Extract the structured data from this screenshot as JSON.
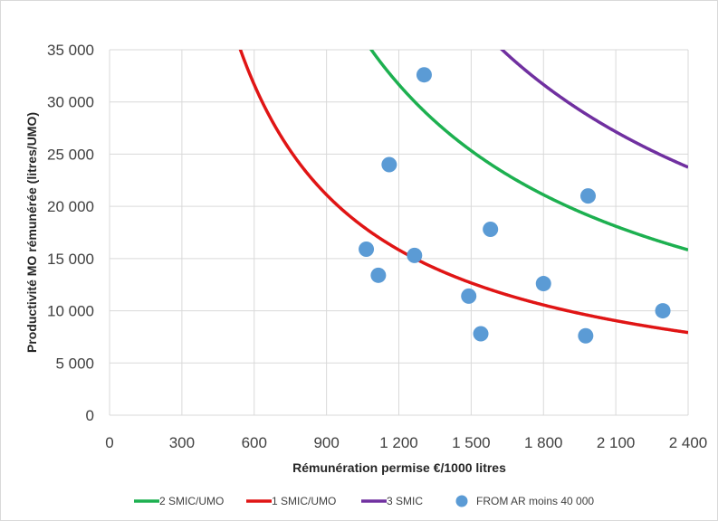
{
  "chart_data": {
    "type": "scatter",
    "xlabel": "Rémunération permise €/1000 litres",
    "ylabel": "Productivité MO rémunérée (litres/UMO)",
    "xlim": [
      0,
      2400
    ],
    "ylim": [
      0,
      35000
    ],
    "x_ticks": [
      0,
      300,
      600,
      900,
      1200,
      1500,
      1800,
      2100,
      2400
    ],
    "x_tick_labels": [
      "0",
      "300",
      "600",
      "900",
      "1 200",
      "1 500",
      "1 800",
      "2 100",
      "2 400"
    ],
    "y_ticks": [
      0,
      5000,
      10000,
      15000,
      20000,
      25000,
      30000,
      35000
    ],
    "y_tick_labels": [
      "0",
      "5 000",
      "10 000",
      "15 000",
      "20 000",
      "25 000",
      "30 000",
      "35 000"
    ],
    "grid": true,
    "legend_position": "bottom",
    "series": [
      {
        "name": "2 SMIC/UMO",
        "kind": "line",
        "color": "#1db050",
        "constant": 38000000
      },
      {
        "name": "1 SMIC/UMO",
        "kind": "line",
        "color": "#e01515",
        "constant": 19000000
      },
      {
        "name": "3 SMIC",
        "kind": "line",
        "color": "#7030a0",
        "constant": 57000000
      },
      {
        "name": "FROM AR moins 40 000",
        "kind": "scatter",
        "color": "#5b9bd5",
        "points": [
          [
            1065,
            15900
          ],
          [
            1115,
            13400
          ],
          [
            1160,
            24000
          ],
          [
            1265,
            15300
          ],
          [
            1305,
            32600
          ],
          [
            1490,
            11400
          ],
          [
            1540,
            7800
          ],
          [
            1580,
            17800
          ],
          [
            1800,
            12600
          ],
          [
            1975,
            7600
          ],
          [
            1985,
            21000
          ],
          [
            2295,
            10000
          ]
        ]
      }
    ]
  }
}
